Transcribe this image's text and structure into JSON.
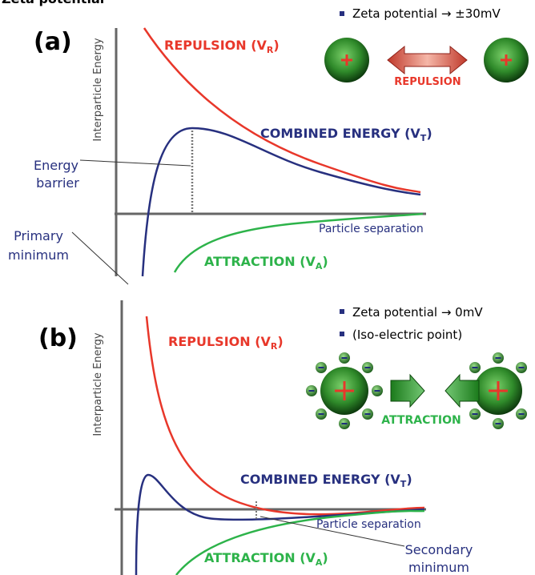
{
  "heading": "Zeta potential",
  "panel_a": {
    "letter": "(a)",
    "y_axis_label": "Interparticle Energy",
    "repulsion": {
      "text": "REPULSION (V",
      "sub": "R",
      "close": ")"
    },
    "combined": {
      "text": "COMBINED ENERGY (V",
      "sub": "T",
      "close": ")"
    },
    "attraction": {
      "text": "ATTRACTION (V",
      "sub": "A",
      "close": ")"
    },
    "x_axis_label": "Particle separation",
    "energy_barrier": [
      "Energy",
      "barrier"
    ],
    "primary_minimum": [
      "Primary",
      "minimum"
    ],
    "zeta_note": "Zeta potential → ±30mV",
    "arrow_label": "REPULSION"
  },
  "panel_b": {
    "letter": "(b)",
    "y_axis_label": "Interparticle Energy",
    "repulsion": {
      "text": "REPULSION (V",
      "sub": "R",
      "close": ")"
    },
    "combined": {
      "text": "COMBINED ENERGY (V",
      "sub": "T",
      "close": ")"
    },
    "attraction": {
      "text": "ATTRACTION (V",
      "sub": "A",
      "close": ")"
    },
    "x_axis_label": "Particle separation",
    "secondary_minimum": [
      "Secondary",
      "minimum"
    ],
    "zeta_note": "Zeta potential → 0mV",
    "iso_note": "(Iso-electric point)",
    "arrow_label": "ATTRACTION"
  }
}
